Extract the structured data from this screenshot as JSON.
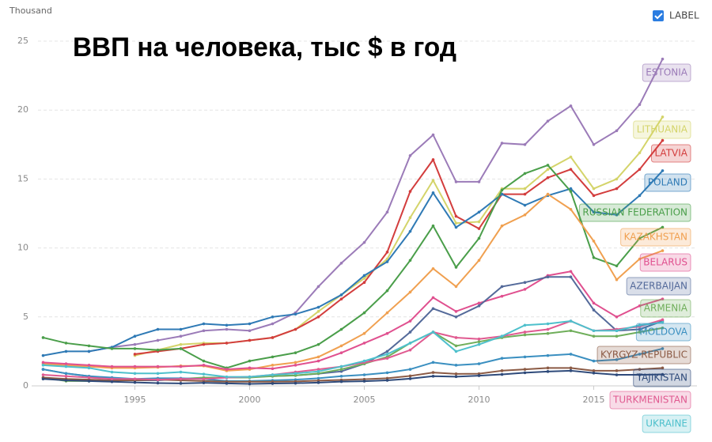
{
  "chart_data": {
    "type": "line",
    "title": "ВВП на человека, тыс $ в год",
    "y_unit": "Thousand",
    "toggle_label": "LABEL",
    "x": [
      1991,
      1992,
      1993,
      1994,
      1995,
      1996,
      1997,
      1998,
      1999,
      2000,
      2001,
      2002,
      2003,
      2004,
      2005,
      2006,
      2007,
      2008,
      2009,
      2010,
      2011,
      2012,
      2013,
      2014,
      2015,
      2016,
      2017,
      2018
    ],
    "xlim": [
      1990.5,
      2019.5
    ],
    "xticks": [
      1995,
      2000,
      2005,
      2010,
      2015
    ],
    "ylim": [
      0,
      25
    ],
    "yticks": [
      0,
      5,
      10,
      15,
      20,
      25
    ],
    "grid": true,
    "series": [
      {
        "name": "ESTONIA",
        "color": "#9b7bb8",
        "values": [
          null,
          null,
          2.5,
          2.8,
          3.0,
          3.3,
          3.6,
          4.0,
          4.1,
          4.0,
          4.5,
          5.3,
          7.2,
          8.9,
          10.4,
          12.6,
          16.7,
          18.2,
          14.8,
          14.8,
          17.6,
          17.5,
          19.2,
          20.3,
          17.5,
          18.5,
          20.4,
          23.7
        ]
      },
      {
        "name": "LITHUANIA",
        "color": "#d4d46a",
        "values": [
          null,
          null,
          null,
          null,
          2.2,
          2.6,
          3.0,
          3.1,
          3.1,
          3.3,
          3.5,
          4.1,
          5.4,
          6.6,
          7.8,
          9.2,
          12.2,
          14.9,
          11.8,
          11.9,
          14.3,
          14.3,
          15.7,
          16.6,
          14.3,
          15.0,
          16.9,
          19.5
        ]
      },
      {
        "name": "LATVIA",
        "color": "#d33d3d",
        "values": [
          null,
          null,
          null,
          null,
          2.3,
          2.5,
          2.7,
          3.0,
          3.1,
          3.3,
          3.5,
          4.1,
          5.0,
          6.3,
          7.5,
          9.7,
          14.1,
          16.4,
          12.3,
          11.4,
          13.9,
          13.9,
          15.1,
          15.7,
          13.8,
          14.3,
          15.7,
          17.8
        ]
      },
      {
        "name": "POLAND",
        "color": "#2f7ab5",
        "values": [
          2.2,
          2.5,
          2.5,
          2.8,
          3.6,
          4.1,
          4.1,
          4.5,
          4.4,
          4.5,
          5.0,
          5.2,
          5.7,
          6.6,
          8.0,
          9.0,
          11.2,
          14.0,
          11.5,
          12.6,
          13.9,
          13.1,
          13.8,
          14.3,
          12.6,
          12.4,
          13.8,
          15.6
        ]
      },
      {
        "name": "RUSSIAN FEDERATION",
        "color": "#4a9e4a",
        "values": [
          3.5,
          3.1,
          2.9,
          2.7,
          2.7,
          2.6,
          2.7,
          1.8,
          1.3,
          1.8,
          2.1,
          2.4,
          3.0,
          4.1,
          5.3,
          6.9,
          9.1,
          11.6,
          8.6,
          10.7,
          14.2,
          15.4,
          16.0,
          14.1,
          9.3,
          8.7,
          10.7,
          11.5
        ]
      },
      {
        "name": "KAZAKHSTAN",
        "color": "#f0a050",
        "values": [
          1.6,
          1.5,
          1.4,
          1.3,
          1.3,
          1.35,
          1.45,
          1.45,
          1.1,
          1.2,
          1.5,
          1.7,
          2.1,
          2.9,
          3.8,
          5.3,
          6.8,
          8.5,
          7.2,
          9.1,
          11.6,
          12.4,
          13.9,
          12.8,
          10.5,
          7.7,
          9.2,
          9.8
        ]
      },
      {
        "name": "BELARUS",
        "color": "#e0508f",
        "values": [
          1.7,
          1.6,
          1.5,
          1.4,
          1.4,
          1.4,
          1.4,
          1.5,
          1.2,
          1.3,
          1.25,
          1.5,
          1.8,
          2.4,
          3.1,
          3.8,
          4.7,
          6.4,
          5.4,
          6.0,
          6.5,
          7.0,
          8.0,
          8.3,
          6.0,
          5.0,
          5.8,
          6.3
        ]
      },
      {
        "name": "AZERBAIJAN",
        "color": "#546a9a",
        "values": [
          1.2,
          0.9,
          0.7,
          0.5,
          0.4,
          0.4,
          0.5,
          0.55,
          0.6,
          0.65,
          0.7,
          0.76,
          0.88,
          1.05,
          1.6,
          2.5,
          3.9,
          5.6,
          5.0,
          5.8,
          7.2,
          7.5,
          7.9,
          7.9,
          5.5,
          4.0,
          4.1,
          4.7
        ]
      },
      {
        "name": "ARMENIA",
        "color": "#6fae5a",
        "values": [
          0.6,
          0.35,
          0.35,
          0.4,
          0.45,
          0.5,
          0.5,
          0.6,
          0.6,
          0.6,
          0.7,
          0.75,
          0.9,
          1.2,
          1.6,
          2.1,
          3.1,
          3.9,
          2.9,
          3.2,
          3.5,
          3.7,
          3.8,
          4.0,
          3.6,
          3.6,
          3.9,
          4.2
        ]
      },
      {
        "name": "MOLDOVA",
        "color": "#3a8fc0",
        "values": [
          1.2,
          0.9,
          0.7,
          0.6,
          0.5,
          0.55,
          0.55,
          0.5,
          0.35,
          0.35,
          0.4,
          0.45,
          0.55,
          0.7,
          0.8,
          0.95,
          1.2,
          1.7,
          1.5,
          1.6,
          2.0,
          2.1,
          2.2,
          2.3,
          1.8,
          1.9,
          2.3,
          2.7
        ]
      },
      {
        "name": "KYRGYZ REPUBLIC",
        "color": "#8b5a44",
        "values": [
          0.6,
          0.5,
          0.45,
          0.4,
          0.4,
          0.45,
          0.4,
          0.35,
          0.3,
          0.3,
          0.3,
          0.32,
          0.38,
          0.43,
          0.48,
          0.55,
          0.72,
          0.97,
          0.87,
          0.88,
          1.1,
          1.2,
          1.3,
          1.3,
          1.1,
          1.1,
          1.2,
          1.3
        ]
      },
      {
        "name": "TAJIKISTAN",
        "color": "#2e4a7a",
        "values": [
          0.5,
          0.4,
          0.35,
          0.3,
          0.25,
          0.2,
          0.18,
          0.22,
          0.18,
          0.14,
          0.17,
          0.19,
          0.24,
          0.31,
          0.34,
          0.4,
          0.52,
          0.7,
          0.67,
          0.74,
          0.83,
          0.95,
          1.04,
          1.1,
          0.93,
          0.8,
          0.8,
          0.83
        ]
      },
      {
        "name": "TURKMENISTAN",
        "color": "#e05a90",
        "values": [
          0.8,
          0.7,
          0.6,
          0.5,
          0.5,
          0.45,
          0.5,
          0.5,
          0.6,
          0.65,
          0.8,
          1.0,
          1.2,
          1.4,
          1.7,
          2.0,
          2.6,
          3.9,
          3.5,
          3.4,
          3.6,
          3.9,
          4.1,
          4.7,
          4.0,
          4.1,
          4.3,
          4.8
        ]
      },
      {
        "name": "UKRAINE",
        "color": "#4ec0cc",
        "values": [
          1.5,
          1.4,
          1.3,
          1.0,
          0.9,
          0.9,
          1.0,
          0.85,
          0.65,
          0.65,
          0.8,
          0.9,
          1.05,
          1.4,
          1.8,
          2.3,
          3.1,
          3.9,
          2.5,
          3.0,
          3.6,
          4.4,
          4.5,
          4.7,
          4.0,
          4.0,
          4.4,
          4.6
        ]
      }
    ]
  }
}
